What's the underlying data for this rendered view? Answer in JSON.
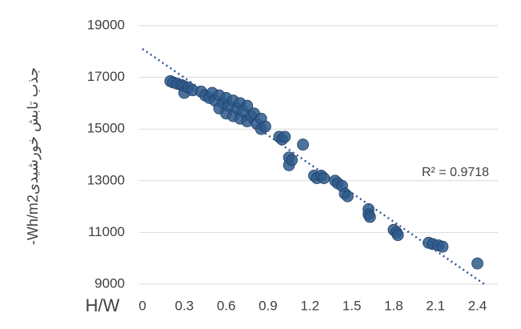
{
  "chart_data": {
    "type": "scatter",
    "y_label": "-Wh/m2جذب تابش خورشیدی",
    "x_label": "H/W",
    "annotation": "R² = 0.9718",
    "color": "#2e5b8c",
    "trend_color": "#2f5597",
    "x": [
      0.2,
      0.22,
      0.25,
      0.28,
      0.3,
      0.3,
      0.33,
      0.36,
      0.42,
      0.45,
      0.48,
      0.5,
      0.52,
      0.55,
      0.55,
      0.58,
      0.6,
      0.6,
      0.62,
      0.65,
      0.65,
      0.68,
      0.7,
      0.7,
      0.72,
      0.75,
      0.75,
      0.78,
      0.8,
      0.82,
      0.85,
      0.85,
      0.88,
      0.98,
      1.0,
      1.02,
      1.05,
      1.05,
      1.07,
      1.15,
      1.23,
      1.25,
      1.28,
      1.3,
      1.38,
      1.4,
      1.43,
      1.45,
      1.47,
      1.62,
      1.62,
      1.63,
      1.8,
      1.82,
      1.83,
      2.05,
      2.08,
      2.12,
      2.15,
      2.4
    ],
    "values": [
      16850,
      16800,
      16750,
      16700,
      16650,
      16400,
      16600,
      16500,
      16450,
      16300,
      16200,
      16400,
      16100,
      16300,
      15800,
      16000,
      16200,
      15600,
      15900,
      16100,
      15500,
      15800,
      16000,
      15400,
      15700,
      15900,
      15300,
      15500,
      15600,
      15200,
      15000,
      15400,
      15100,
      14700,
      14600,
      14700,
      13900,
      13600,
      13800,
      14400,
      13200,
      13100,
      13200,
      13100,
      13000,
      12900,
      12800,
      12500,
      12400,
      11900,
      11700,
      11600,
      11100,
      11000,
      10900,
      10600,
      10550,
      10500,
      10450,
      9800
    ],
    "trendline": {
      "x": [
        0,
        2.45
      ],
      "y": [
        18100,
        9000
      ]
    },
    "xlim": [
      0,
      2.5
    ],
    "xticks": [
      0,
      0.3,
      0.6,
      0.9,
      1.2,
      1.5,
      1.8,
      2.1,
      2.4
    ],
    "ylim": [
      9000,
      19000
    ],
    "yticks": [
      9000,
      11000,
      13000,
      15000,
      17000,
      19000
    ],
    "grid": true
  }
}
